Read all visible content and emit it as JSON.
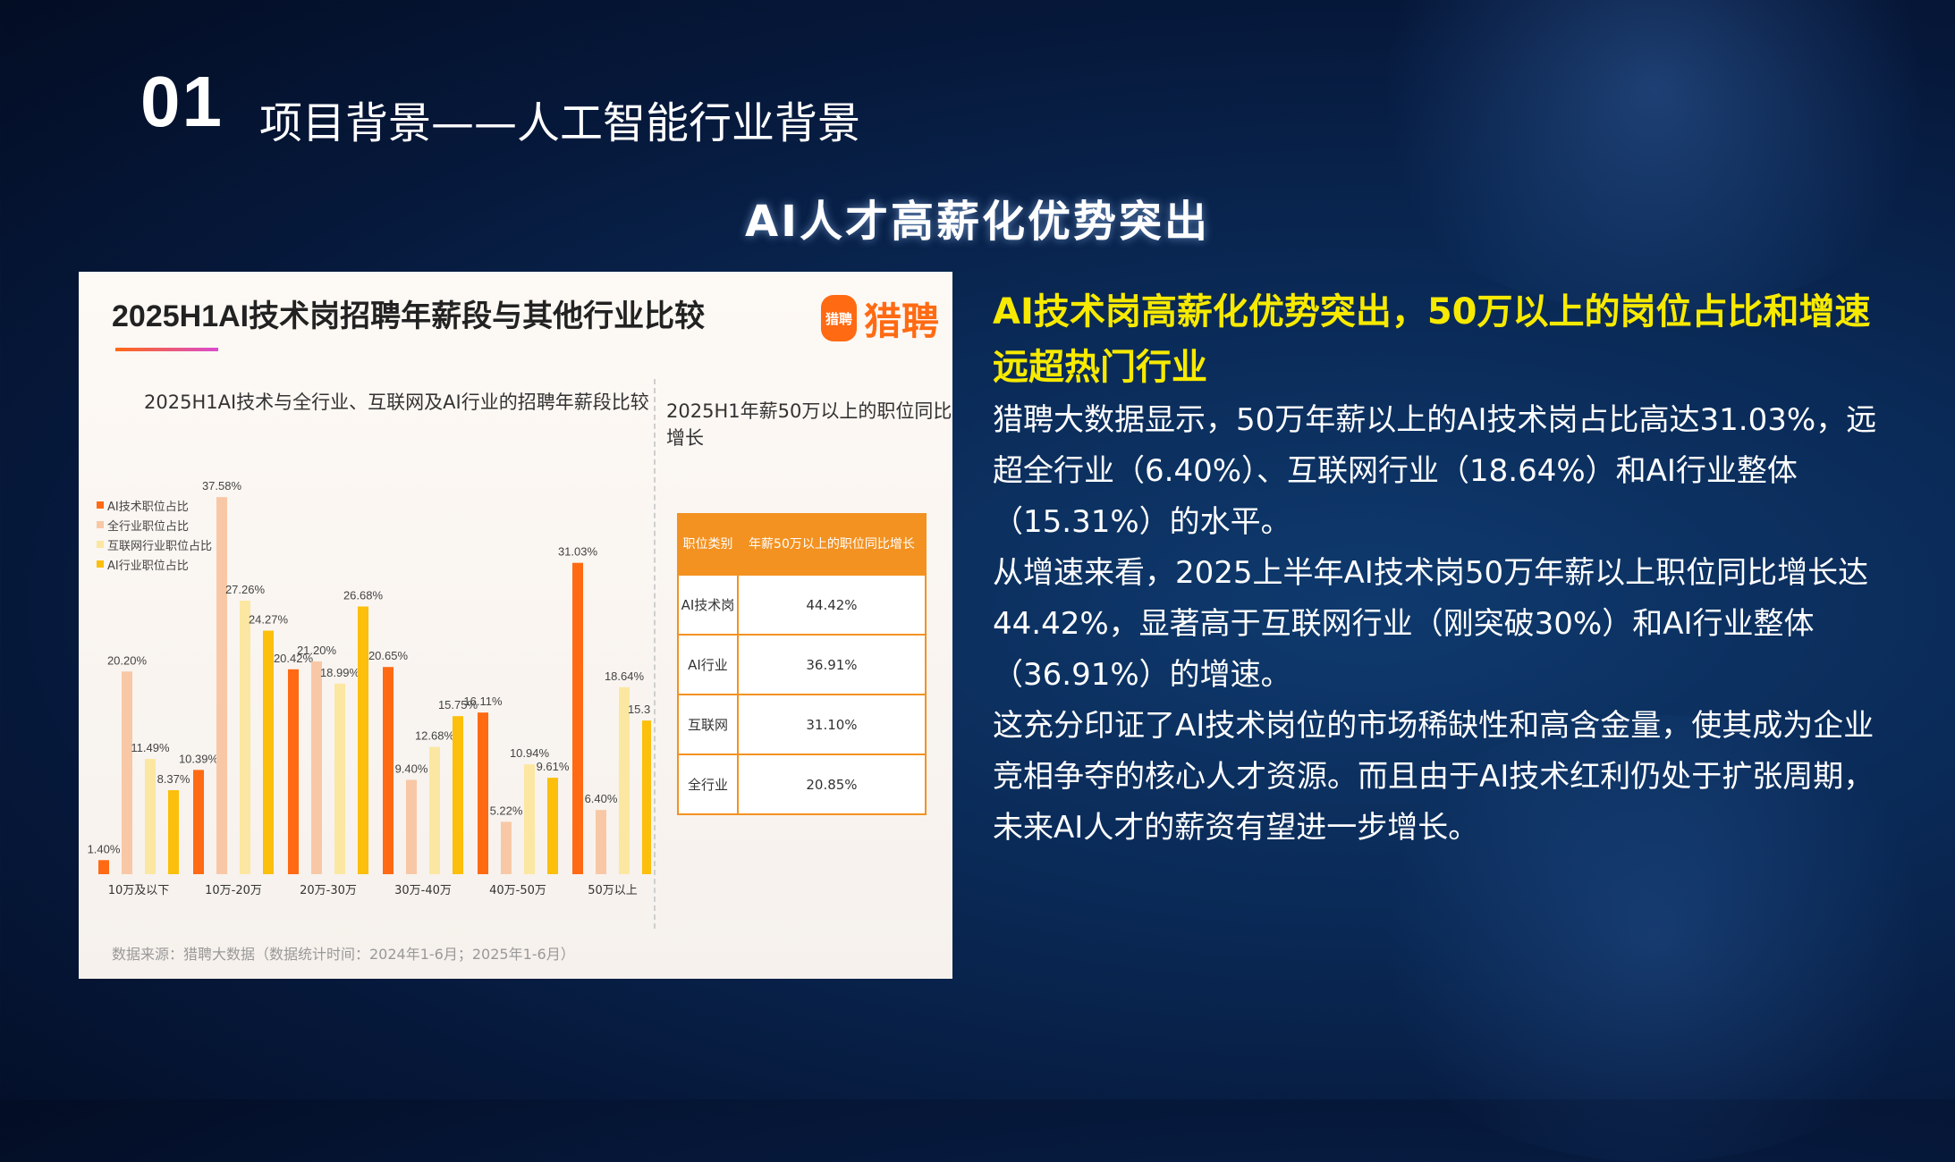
{
  "header": {
    "number": "01",
    "title": "项目背景——人工智能行业背景"
  },
  "subtitle": "AI人才高薪化优势突出",
  "card": {
    "title": "2025H1AI技术岗招聘年薪段与其他行业比较",
    "logo_badge": "猎聘",
    "logo_text": "猎聘",
    "chart_subtitle": "2025H1AI技术与全行业、互联网及AI行业的招聘年薪段比较",
    "table_subtitle": "2025H1年薪50万以上的职位同比增长",
    "source": "数据来源：猎聘大数据（数据统计时间：2024年1-6月；2025年1-6月）",
    "table": {
      "headers": [
        "职位类别",
        "年薪50万以上的职位同比增长"
      ],
      "rows": [
        [
          "AI技术岗",
          "44.42%"
        ],
        [
          "AI行业",
          "36.91%"
        ],
        [
          "互联网",
          "31.10%"
        ],
        [
          "全行业",
          "20.85%"
        ]
      ]
    }
  },
  "chart_data": [
    {
      "type": "bar",
      "title": "2025H1AI技术与全行业、互联网及AI行业的招聘年薪段比较",
      "categories": [
        "10万及以下",
        "10万-20万",
        "20万-30万",
        "30万-40万",
        "40万-50万",
        "50万以上"
      ],
      "series": [
        {
          "name": "AI技术职位占比",
          "color": "#ff6a13",
          "values": [
            1.4,
            10.39,
            20.42,
            20.65,
            16.11,
            31.03
          ]
        },
        {
          "name": "全行业职位占比",
          "color": "#f8c8a6",
          "values": [
            20.2,
            37.58,
            21.2,
            9.4,
            5.22,
            6.4
          ]
        },
        {
          "name": "互联网行业职位占比",
          "color": "#fbe7a1",
          "values": [
            11.49,
            27.26,
            18.99,
            12.68,
            10.94,
            18.64
          ]
        },
        {
          "name": "AI行业职位占比",
          "color": "#fbbf0c",
          "values": [
            8.37,
            24.27,
            26.68,
            15.75,
            9.61,
            15.31
          ]
        }
      ],
      "ylim": [
        0,
        40
      ],
      "grid": false,
      "legend": "top-left"
    },
    {
      "type": "table",
      "title": "2025H1年薪50万以上的职位同比增长",
      "columns": [
        "职位类别",
        "年薪50万以上的职位同比增长"
      ],
      "rows": [
        [
          "AI技术岗",
          "44.42%"
        ],
        [
          "AI行业",
          "36.91%"
        ],
        [
          "互联网",
          "31.10%"
        ],
        [
          "全行业",
          "20.85%"
        ]
      ]
    }
  ],
  "text": {
    "highlight": "AI技术岗高薪化优势突出，50万以上的岗位占比和增速远超热门行业",
    "paragraphs": [
      "猎聘大数据显示，50万年薪以上的AI技术岗占比高达31.03%，远超全行业（6.40%）、互联网行业（18.64%）和AI行业整体（15.31%）的水平。",
      "从增速来看，2025上半年AI技术岗50万年薪以上职位同比增长达44.42%，显著高于互联网行业（刚突破30%）和AI行业整体（36.91%）的增速。",
      "这充分印证了AI技术岗位的市场稀缺性和高含金量，使其成为企业竞相争夺的核心人才资源。而且由于AI技术红利仍处于扩张周期，未来AI人才的薪资有望进一步增长。"
    ]
  }
}
